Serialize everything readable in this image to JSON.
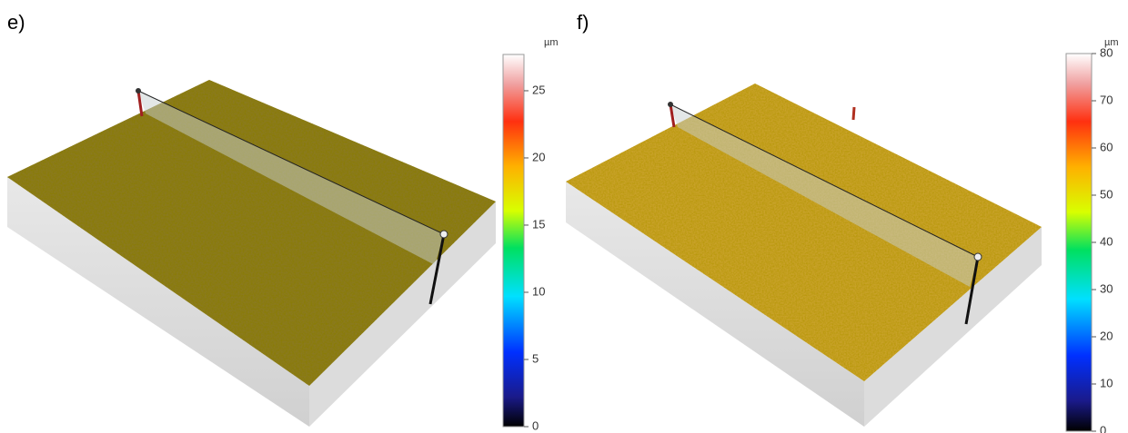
{
  "chart_data": [
    {
      "type": "surface",
      "title": "e)",
      "unit": "µm",
      "ylim": [
        0,
        27.7
      ],
      "yticks": [
        0,
        5,
        10,
        15,
        20,
        25
      ]
    },
    {
      "type": "surface",
      "title": "f)",
      "unit": "µm",
      "ylim": [
        0,
        80
      ],
      "yticks": [
        0,
        10,
        20,
        30,
        40,
        50,
        60,
        70,
        80
      ]
    }
  ]
}
